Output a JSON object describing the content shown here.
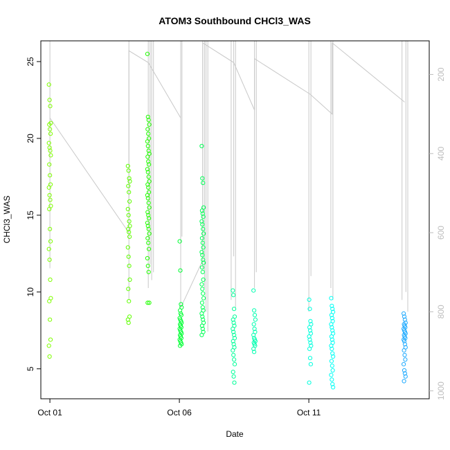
{
  "chart_data": {
    "type": "scatter",
    "title": "ATOM3 Southbound CHCl3_WAS",
    "xlabel": "Date",
    "ylabel": "CHCl3_WAS",
    "x_ticks": [
      "Oct 01",
      "Oct 06",
      "Oct 11"
    ],
    "x_tick_days": [
      1,
      6,
      11
    ],
    "xlim": [
      0.65,
      15.65
    ],
    "ylim": [
      3.05,
      26.35
    ],
    "y_ticks": [
      5,
      10,
      15,
      20,
      25
    ],
    "right_axis": {
      "ticks": [
        200,
        400,
        600,
        800,
        1000
      ],
      "lim": [
        1020,
        115
      ],
      "reversed": true,
      "color": "#bdbdbd"
    },
    "grid": false,
    "points": [
      {
        "x": 1.0,
        "values": [
          23.5,
          22.5,
          22.1,
          21.0,
          20.9,
          20.6,
          20.3,
          19.7,
          19.4,
          19.2,
          18.9,
          18.3,
          17.6,
          17.0,
          16.8,
          16.3,
          16.0,
          15.6,
          15.4,
          14.1,
          13.3,
          12.8,
          12.1,
          10.8,
          9.6,
          9.4,
          8.2,
          6.9,
          6.5,
          5.8
        ],
        "color": "#7fff00"
      },
      {
        "x": 4.05,
        "values": [
          18.2,
          17.9,
          17.4,
          17.2,
          16.9,
          16.5,
          15.9,
          15.4,
          15.0,
          14.6,
          14.3,
          14.1,
          13.9,
          13.6,
          12.9,
          12.3,
          11.7,
          10.8,
          10.2,
          9.4,
          8.4,
          8.2,
          8.0
        ],
        "color": "#5fff00"
      },
      {
        "x": 4.8,
        "values": [
          25.5,
          21.4,
          21.2,
          20.9,
          20.6,
          20.3,
          20.0,
          19.8,
          19.5,
          19.2,
          19.0,
          18.8,
          18.5,
          18.3,
          18.0,
          17.8,
          17.5,
          17.2,
          17.0,
          16.8,
          16.5,
          16.3,
          16.1,
          15.8,
          15.5,
          15.2,
          15.0,
          14.8,
          14.5,
          14.3,
          14.1,
          13.8,
          13.5,
          13.2,
          12.8,
          12.2,
          11.7,
          11.3,
          9.3,
          9.3
        ],
        "color": "#22ff00"
      },
      {
        "x": 6.05,
        "values": [
          13.3,
          11.4,
          9.2,
          9.0,
          8.8,
          8.6,
          8.5,
          8.3,
          8.2,
          8.1,
          8.0,
          7.9,
          7.8,
          7.7,
          7.6,
          7.5,
          7.4,
          7.3,
          7.2,
          7.1,
          7.0,
          6.9,
          6.8,
          6.7,
          6.6,
          6.5
        ],
        "color": "#00ff33"
      },
      {
        "x": 6.9,
        "values": [
          19.5,
          17.4,
          17.1,
          15.5,
          15.3,
          15.1,
          14.9,
          14.6,
          14.4,
          14.1,
          13.8,
          13.5,
          13.2,
          12.9,
          12.6,
          12.4,
          12.1,
          11.9,
          11.6,
          11.3,
          10.8,
          10.5,
          10.2,
          9.9,
          9.6,
          9.3,
          9.0,
          8.8,
          8.6,
          8.4,
          8.2,
          8.0,
          7.8,
          7.6,
          7.4,
          7.2
        ],
        "color": "#00ff55"
      },
      {
        "x": 8.1,
        "values": [
          10.1,
          9.8,
          8.9,
          8.4,
          8.2,
          8.0,
          7.8,
          7.6,
          7.4,
          7.2,
          7.0,
          6.8,
          6.6,
          6.4,
          6.2,
          5.9,
          5.6,
          5.3,
          4.8,
          4.5,
          4.1
        ],
        "color": "#00ff99"
      },
      {
        "x": 8.9,
        "values": [
          10.1,
          8.8,
          8.5,
          8.2,
          7.9,
          7.6,
          7.4,
          7.2,
          7.0,
          6.9,
          6.8,
          6.7,
          6.6,
          6.5,
          6.3,
          6.1
        ],
        "color": "#00ffb0"
      },
      {
        "x": 11.05,
        "values": [
          9.5,
          8.9,
          8.1,
          7.9,
          7.7,
          7.5,
          7.3,
          7.1,
          6.9,
          6.7,
          6.5,
          6.3,
          5.7,
          5.3,
          4.1
        ],
        "color": "#00ffdd"
      },
      {
        "x": 11.9,
        "values": [
          9.6,
          9.1,
          8.9,
          8.7,
          8.5,
          8.3,
          8.1,
          7.9,
          7.7,
          7.5,
          7.3,
          7.1,
          6.9,
          6.7,
          6.5,
          6.3,
          6.0,
          5.8,
          5.5,
          5.2,
          4.9,
          4.6,
          4.3,
          4.0,
          3.8
        ],
        "color": "#00fff5"
      },
      {
        "x": 14.7,
        "values": [
          8.6,
          8.4,
          8.2,
          8.0,
          7.9,
          7.8,
          7.7,
          7.6,
          7.5,
          7.4,
          7.3,
          7.2,
          7.1,
          7.0,
          6.9,
          6.8,
          6.6,
          6.4,
          6.2,
          5.9,
          5.6,
          5.3,
          4.9,
          4.7,
          4.5,
          4.2
        ],
        "color": "#1eaaff"
      }
    ],
    "altitude_trace": [
      {
        "x": 1.0,
        "alt": 310
      },
      {
        "x": 4.05,
        "alt": 600
      },
      {
        "x": 4.05,
        "alt": 140
      },
      {
        "x": 4.8,
        "alt": 170
      },
      {
        "x": 6.05,
        "alt": 310
      },
      {
        "x": 6.05,
        "alt": 790
      },
      {
        "x": 6.9,
        "alt": 670
      },
      {
        "x": 6.9,
        "alt": 120
      },
      {
        "x": 8.1,
        "alt": 170
      },
      {
        "x": 8.9,
        "alt": 290
      },
      {
        "x": 8.9,
        "alt": 160
      },
      {
        "x": 11.05,
        "alt": 250
      },
      {
        "x": 11.9,
        "alt": 300
      },
      {
        "x": 11.9,
        "alt": 120
      },
      {
        "x": 14.7,
        "alt": 270
      }
    ],
    "profiles": [
      {
        "x": 1.0,
        "bottom": 690
      },
      {
        "x": 4.05,
        "bottom": 770
      },
      {
        "x": 4.8,
        "bottom": 740
      },
      {
        "x": 4.87,
        "bottom": 680
      },
      {
        "x": 4.93,
        "bottom": 720
      },
      {
        "x": 5.0,
        "bottom": 700
      },
      {
        "x": 6.05,
        "bottom": 640
      },
      {
        "x": 6.1,
        "bottom": 610
      },
      {
        "x": 6.9,
        "bottom": 690
      },
      {
        "x": 6.97,
        "bottom": 740
      },
      {
        "x": 7.03,
        "bottom": 800
      },
      {
        "x": 7.1,
        "bottom": 850
      },
      {
        "x": 8.0,
        "bottom": 770
      },
      {
        "x": 8.1,
        "bottom": 660
      },
      {
        "x": 8.17,
        "bottom": 790
      },
      {
        "x": 8.9,
        "bottom": 740
      },
      {
        "x": 8.97,
        "bottom": 700
      },
      {
        "x": 11.0,
        "bottom": 800
      },
      {
        "x": 11.08,
        "bottom": 710
      },
      {
        "x": 11.85,
        "bottom": 740
      },
      {
        "x": 11.93,
        "bottom": 770
      },
      {
        "x": 14.6,
        "bottom": 770
      },
      {
        "x": 14.75,
        "bottom": 750
      },
      {
        "x": 14.82,
        "bottom": 800
      }
    ]
  }
}
